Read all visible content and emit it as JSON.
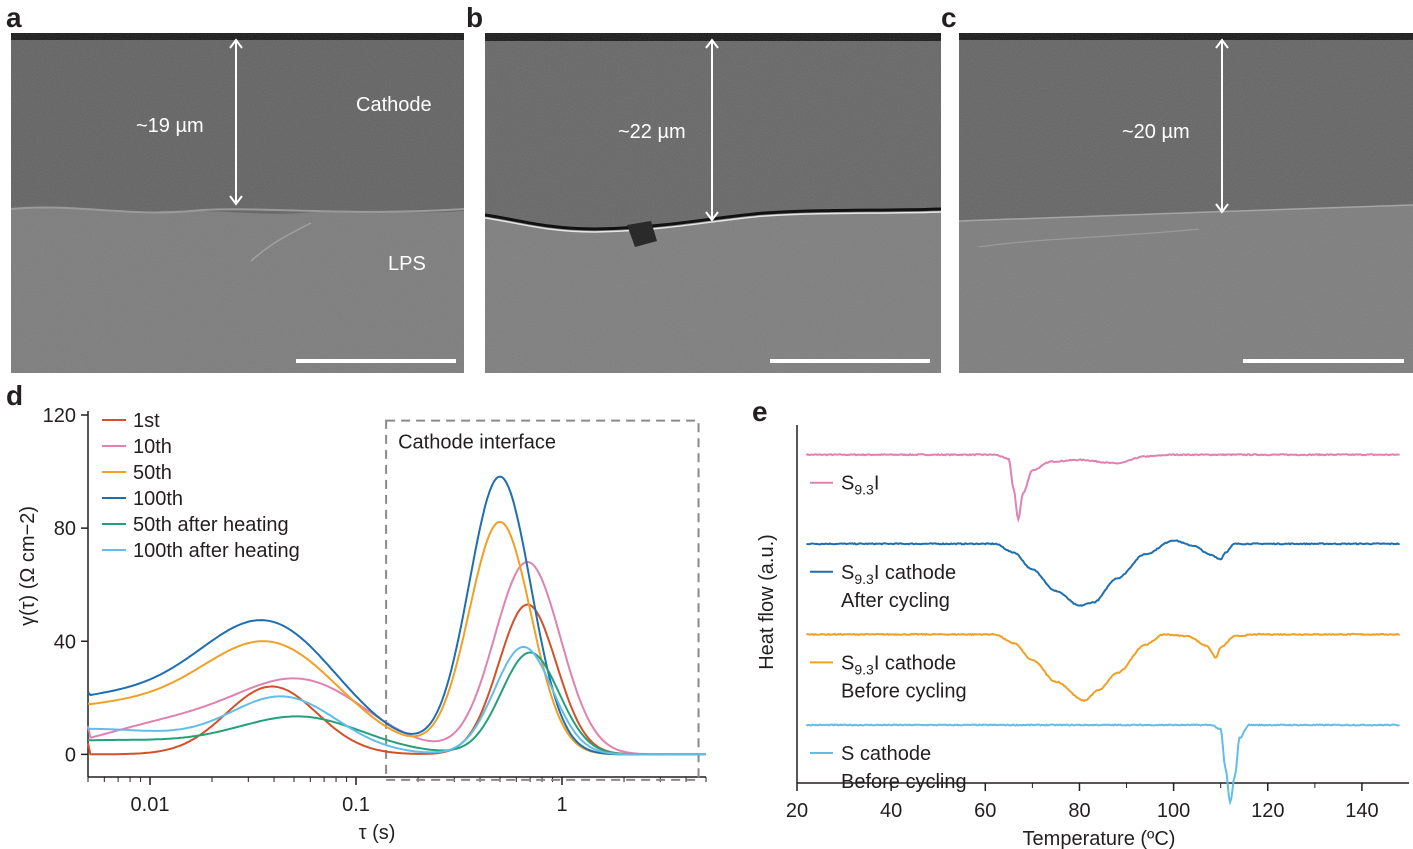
{
  "panels": {
    "a": {
      "label": "a",
      "thickness": "~19 µm",
      "cathode": "Cathode",
      "lps": "LPS"
    },
    "b": {
      "label": "b",
      "thickness": "~22 µm"
    },
    "c": {
      "label": "c",
      "thickness": "~20 µm"
    },
    "d": {
      "label": "d"
    },
    "e": {
      "label": "e"
    }
  },
  "chart_data": [
    {
      "panel": "d",
      "type": "line",
      "xscale": "log",
      "xlabel": "τ (s)",
      "ylabel": "γ(τ) (Ω cm−2)",
      "xlim": [
        0.005,
        5
      ],
      "ylim": [
        -8,
        120
      ],
      "yticks": [
        0,
        40,
        80,
        120
      ],
      "xticks": [
        0.01,
        0.1,
        1
      ],
      "xtick_labels": [
        "0.01",
        "0.1",
        "1"
      ],
      "ytick_labels": [
        "0",
        "40",
        "80",
        "120"
      ],
      "annotation": "Cathode interface",
      "annotation_box_x": [
        0.14,
        4.6
      ],
      "annotation_box_y": [
        -9,
        118
      ],
      "legend_position": "top-left",
      "series": [
        {
          "name": "1st",
          "color": "#d4502a",
          "baseline": 0,
          "peaks": [
            [
              0.039,
              24,
              0.22
            ],
            [
              0.68,
              53,
              0.14
            ]
          ],
          "start": 4
        },
        {
          "name": "10th",
          "color": "#df82b2",
          "baseline": 0,
          "peaks": [
            [
              0.012,
              10,
              0.35
            ],
            [
              0.055,
              25,
              0.32
            ],
            [
              0.68,
              68,
              0.16
            ]
          ],
          "start": 10
        },
        {
          "name": "50th",
          "color": "#f0a125",
          "baseline": 0,
          "peaks": [
            [
              0.006,
              17,
              0.6
            ],
            [
              0.04,
              33,
              0.33
            ],
            [
              0.5,
              82,
              0.15
            ]
          ],
          "start": 18
        },
        {
          "name": "100th",
          "color": "#1f6fb0",
          "baseline": 0,
          "peaks": [
            [
              0.006,
              20,
              0.6
            ],
            [
              0.039,
              39,
              0.33
            ],
            [
              0.5,
              98,
              0.15
            ]
          ],
          "start": 22
        },
        {
          "name": "50th after heating",
          "color": "#23a07a",
          "baseline": 0,
          "peaks": [
            [
              0.006,
              5,
              0.6
            ],
            [
              0.055,
              12,
              0.3
            ],
            [
              0.7,
              36,
              0.14
            ]
          ],
          "start": 5
        },
        {
          "name": "100th after heating",
          "color": "#62bde9",
          "baseline": 0,
          "peaks": [
            [
              0.005,
              9,
              0.5
            ],
            [
              0.045,
              19,
              0.26
            ],
            [
              0.65,
              38,
              0.14
            ]
          ],
          "start": 9
        }
      ]
    },
    {
      "panel": "e",
      "type": "line",
      "xlabel": "Temperature (ºC)",
      "ylabel": "Heat flow (a.u.)",
      "xlim": [
        20,
        150
      ],
      "xticks": [
        20,
        40,
        60,
        80,
        100,
        120,
        140
      ],
      "xtick_labels": [
        "20",
        "40",
        "60",
        "80",
        "100",
        "120",
        "140"
      ],
      "series": [
        {
          "name": "S9.3I",
          "name_main": "S",
          "name_sub": "9.3",
          "name_tail": "I",
          "line2": "",
          "color": "#df82b2",
          "offset": 4.0,
          "points": [
            [
              22,
              0
            ],
            [
              62,
              0
            ],
            [
              65,
              -0.05
            ],
            [
              66,
              -0.4
            ],
            [
              67,
              -0.75
            ],
            [
              68,
              -0.45
            ],
            [
              70,
              -0.18
            ],
            [
              74,
              -0.08
            ],
            [
              80,
              -0.06
            ],
            [
              88,
              -0.1
            ],
            [
              94,
              -0.02
            ],
            [
              100,
              0
            ],
            [
              148,
              0
            ]
          ]
        },
        {
          "name": "S9.3I cathode After cycling",
          "name_main": "S",
          "name_sub": "9.3",
          "name_tail": "I cathode",
          "line2": "After cycling",
          "color": "#1f6fb0",
          "offset": 2.82,
          "points": [
            [
              22,
              0
            ],
            [
              62,
              0
            ],
            [
              66,
              -0.1
            ],
            [
              70,
              -0.3
            ],
            [
              75,
              -0.55
            ],
            [
              80,
              -0.72
            ],
            [
              83,
              -0.68
            ],
            [
              88,
              -0.4
            ],
            [
              94,
              -0.12
            ],
            [
              100,
              0.04
            ],
            [
              104,
              -0.02
            ],
            [
              108,
              -0.13
            ],
            [
              110,
              -0.18
            ],
            [
              111,
              -0.1
            ],
            [
              113,
              0
            ],
            [
              148,
              0
            ]
          ]
        },
        {
          "name": "S9.3I cathode Before cycling",
          "name_main": "S",
          "name_sub": "9.3",
          "name_tail": "I cathode",
          "line2": "Before cycling",
          "color": "#f0a125",
          "offset": 1.62,
          "points": [
            [
              22,
              0
            ],
            [
              62,
              0
            ],
            [
              66,
              -0.1
            ],
            [
              70,
              -0.3
            ],
            [
              75,
              -0.55
            ],
            [
              81,
              -0.77
            ],
            [
              84,
              -0.65
            ],
            [
              88,
              -0.45
            ],
            [
              94,
              -0.12
            ],
            [
              98,
              0
            ],
            [
              103,
              -0.02
            ],
            [
              107,
              -0.13
            ],
            [
              109,
              -0.27
            ],
            [
              110,
              -0.15
            ],
            [
              113,
              -0.02
            ],
            [
              118,
              0
            ],
            [
              148,
              0
            ]
          ]
        },
        {
          "name": "S cathode Before cycling",
          "name_main": "S cathode",
          "name_sub": "",
          "name_tail": "",
          "line2": "Before cycling",
          "color": "#62bde9",
          "offset": 0.42,
          "points": [
            [
              22,
              0
            ],
            [
              108,
              0
            ],
            [
              110,
              -0.05
            ],
            [
              111,
              -0.5
            ],
            [
              112,
              -0.9
            ],
            [
              113,
              -0.6
            ],
            [
              114,
              -0.15
            ],
            [
              116,
              0
            ],
            [
              148,
              0
            ]
          ]
        }
      ]
    }
  ]
}
